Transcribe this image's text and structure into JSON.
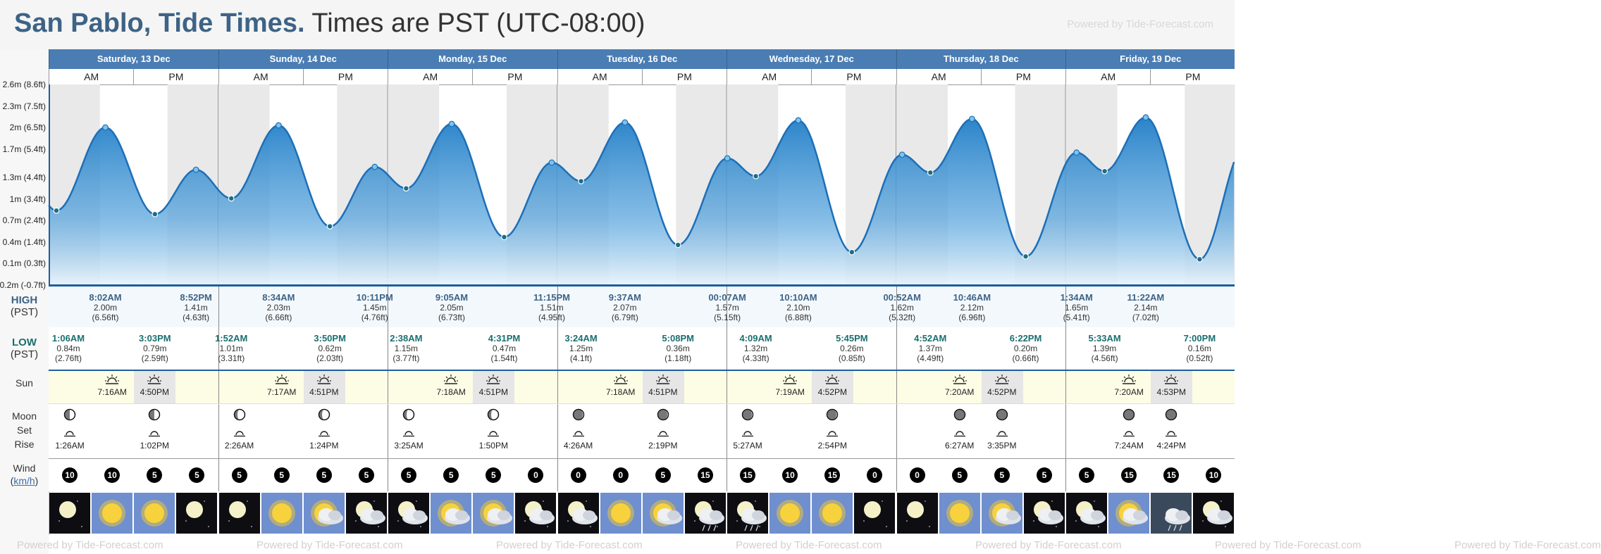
{
  "title": {
    "place": "San Pablo, Tide Times.",
    "zone": "Times are PST (UTC-08:00)"
  },
  "powered": "Powered by Tide-Forecast.com",
  "labels": {
    "high": "HIGH",
    "low": "LOW",
    "pst": "(PST)",
    "sun": "Sun",
    "moon": "Moon",
    "set": "Set",
    "rise": "Rise",
    "wind": "Wind",
    "kmh": "km/h",
    "am": "AM",
    "pm": "PM"
  },
  "colors": {
    "header": "#4a7db3",
    "title": "#3d6386",
    "tide_fill": "#2f8ad0",
    "tide_line": "#1d6fb8"
  },
  "days": [
    "Saturday, 13 Dec",
    "Sunday, 14 Dec",
    "Monday, 15 Dec",
    "Tuesday, 16 Dec",
    "Wednesday, 17 Dec",
    "Thursday, 18 Dec",
    "Friday, 19 Dec"
  ],
  "chart_data": {
    "type": "area",
    "y_unit": "m",
    "yticks": [
      {
        "m": 2.6,
        "label": "2.6m (8.6ft)"
      },
      {
        "m": 2.3,
        "label": "2.3m (7.5ft)"
      },
      {
        "m": 2.0,
        "label": "2m (6.5ft)"
      },
      {
        "m": 1.7,
        "label": "1.7m (5.4ft)"
      },
      {
        "m": 1.3,
        "label": "1.3m (4.4ft)"
      },
      {
        "m": 1.0,
        "label": "1m (3.4ft)"
      },
      {
        "m": 0.7,
        "label": "0.7m (2.4ft)"
      },
      {
        "m": 0.4,
        "label": "0.4m (1.4ft)"
      },
      {
        "m": 0.1,
        "label": "0.1m (0.3ft)"
      },
      {
        "m": -0.2,
        "label": "-0.2m (-0.7ft)"
      }
    ],
    "ylim": [
      -0.2,
      2.6
    ],
    "tides": [
      {
        "type": "low",
        "day": 0,
        "time": "1:06AM",
        "h": 0.84,
        "m": "0.84m",
        "ft": "(2.76ft)"
      },
      {
        "type": "high",
        "day": 0,
        "time": "8:02AM",
        "h": 2.0,
        "m": "2.00m",
        "ft": "(6.56ft)"
      },
      {
        "type": "low",
        "day": 0,
        "time": "3:03PM",
        "h": 0.79,
        "m": "0.79m",
        "ft": "(2.59ft)"
      },
      {
        "type": "high",
        "day": 0,
        "time": "8:52PM",
        "h": 1.41,
        "m": "1.41m",
        "ft": "(4.63ft)"
      },
      {
        "type": "low",
        "day": 1,
        "time": "1:52AM",
        "h": 1.01,
        "m": "1.01m",
        "ft": "(3.31ft)"
      },
      {
        "type": "high",
        "day": 1,
        "time": "8:34AM",
        "h": 2.03,
        "m": "2.03m",
        "ft": "(6.66ft)"
      },
      {
        "type": "low",
        "day": 1,
        "time": "3:50PM",
        "h": 0.62,
        "m": "0.62m",
        "ft": "(2.03ft)"
      },
      {
        "type": "high",
        "day": 1,
        "time": "10:11PM",
        "h": 1.45,
        "m": "1.45m",
        "ft": "(4.76ft)"
      },
      {
        "type": "low",
        "day": 2,
        "time": "2:38AM",
        "h": 1.15,
        "m": "1.15m",
        "ft": "(3.77ft)"
      },
      {
        "type": "high",
        "day": 2,
        "time": "9:05AM",
        "h": 2.05,
        "m": "2.05m",
        "ft": "(6.73ft)"
      },
      {
        "type": "low",
        "day": 2,
        "time": "4:31PM",
        "h": 0.47,
        "m": "0.47m",
        "ft": "(1.54ft)"
      },
      {
        "type": "high",
        "day": 2,
        "time": "11:15PM",
        "h": 1.51,
        "m": "1.51m",
        "ft": "(4.95ft)"
      },
      {
        "type": "low",
        "day": 3,
        "time": "3:24AM",
        "h": 1.25,
        "m": "1.25m",
        "ft": "(4.1ft)"
      },
      {
        "type": "high",
        "day": 3,
        "time": "9:37AM",
        "h": 2.07,
        "m": "2.07m",
        "ft": "(6.79ft)"
      },
      {
        "type": "low",
        "day": 3,
        "time": "5:08PM",
        "h": 0.36,
        "m": "0.36m",
        "ft": "(1.18ft)"
      },
      {
        "type": "high",
        "day": 4,
        "time": "00:07AM",
        "h": 1.57,
        "m": "1.57m",
        "ft": "(5.15ft)"
      },
      {
        "type": "low",
        "day": 4,
        "time": "4:09AM",
        "h": 1.32,
        "m": "1.32m",
        "ft": "(4.33ft)"
      },
      {
        "type": "high",
        "day": 4,
        "time": "10:10AM",
        "h": 2.1,
        "m": "2.10m",
        "ft": "(6.88ft)"
      },
      {
        "type": "low",
        "day": 4,
        "time": "5:45PM",
        "h": 0.26,
        "m": "0.26m",
        "ft": "(0.85ft)"
      },
      {
        "type": "high",
        "day": 5,
        "time": "00:52AM",
        "h": 1.62,
        "m": "1.62m",
        "ft": "(5.32ft)"
      },
      {
        "type": "low",
        "day": 5,
        "time": "4:52AM",
        "h": 1.37,
        "m": "1.37m",
        "ft": "(4.49ft)"
      },
      {
        "type": "high",
        "day": 5,
        "time": "10:46AM",
        "h": 2.12,
        "m": "2.12m",
        "ft": "(6.96ft)"
      },
      {
        "type": "low",
        "day": 5,
        "time": "6:22PM",
        "h": 0.2,
        "m": "0.20m",
        "ft": "(0.66ft)"
      },
      {
        "type": "high",
        "day": 6,
        "time": "1:34AM",
        "h": 1.65,
        "m": "1.65m",
        "ft": "(5.41ft)"
      },
      {
        "type": "low",
        "day": 6,
        "time": "5:33AM",
        "h": 1.39,
        "m": "1.39m",
        "ft": "(4.56ft)"
      },
      {
        "type": "high",
        "day": 6,
        "time": "11:22AM",
        "h": 2.14,
        "m": "2.14m",
        "ft": "(7.02ft)"
      },
      {
        "type": "low",
        "day": 6,
        "time": "7:00PM",
        "h": 0.16,
        "m": "0.16m",
        "ft": "(0.52ft)"
      }
    ]
  },
  "sun": [
    {
      "day": 0,
      "rise": "7:16AM",
      "set": "4:50PM"
    },
    {
      "day": 1,
      "rise": "7:17AM",
      "set": "4:51PM"
    },
    {
      "day": 2,
      "rise": "7:18AM",
      "set": "4:51PM"
    },
    {
      "day": 3,
      "rise": "7:18AM",
      "set": "4:51PM"
    },
    {
      "day": 4,
      "rise": "7:19AM",
      "set": "4:52PM"
    },
    {
      "day": 5,
      "rise": "7:20AM",
      "set": "4:52PM"
    },
    {
      "day": 6,
      "rise": "7:20AM",
      "set": "4:53PM"
    }
  ],
  "moon": [
    {
      "day": 0,
      "slot": 0,
      "time": "1:26AM",
      "phase": "half-right"
    },
    {
      "day": 0,
      "slot": 2,
      "time": "1:02PM",
      "phase": "half-right"
    },
    {
      "day": 1,
      "slot": 0,
      "time": "2:26AM",
      "phase": "half-left"
    },
    {
      "day": 1,
      "slot": 2,
      "time": "1:24PM",
      "phase": "half-left"
    },
    {
      "day": 2,
      "slot": 0,
      "time": "3:25AM",
      "phase": "half-left"
    },
    {
      "day": 2,
      "slot": 2,
      "time": "1:50PM",
      "phase": "half-left"
    },
    {
      "day": 3,
      "slot": 0,
      "time": "4:26AM",
      "phase": "crescent"
    },
    {
      "day": 3,
      "slot": 2,
      "time": "2:19PM",
      "phase": "crescent"
    },
    {
      "day": 4,
      "slot": 0,
      "time": "5:27AM",
      "phase": "crescent"
    },
    {
      "day": 4,
      "slot": 2,
      "time": "2:54PM",
      "phase": "crescent"
    },
    {
      "day": 5,
      "slot": 1,
      "time": "6:27AM",
      "phase": "new"
    },
    {
      "day": 5,
      "slot": 2,
      "time": "3:35PM",
      "phase": "new"
    },
    {
      "day": 6,
      "slot": 1,
      "time": "7:24AM",
      "phase": "new"
    },
    {
      "day": 6,
      "slot": 2,
      "time": "4:24PM",
      "phase": "new"
    }
  ],
  "wind": [
    10,
    10,
    5,
    5,
    5,
    5,
    5,
    5,
    5,
    5,
    5,
    0,
    0,
    0,
    5,
    15,
    15,
    10,
    15,
    0,
    0,
    5,
    5,
    5,
    5,
    15,
    15,
    10
  ],
  "weather": [
    "moon",
    "sun",
    "sun",
    "moon",
    "moon",
    "sun",
    "sun-cloud",
    "moon-cloud",
    "moon-cloud",
    "sun-cloud",
    "sun-cloud",
    "moon-cloud",
    "moon-cloud",
    "sun",
    "sun-cloud",
    "moon-rain",
    "moon-rain",
    "sun",
    "sun",
    "moon",
    "moon",
    "sun",
    "sun-cloud",
    "moon-cloud",
    "moon-cloud",
    "sun-cloud",
    "cloud-rain",
    "moon-cloud"
  ]
}
